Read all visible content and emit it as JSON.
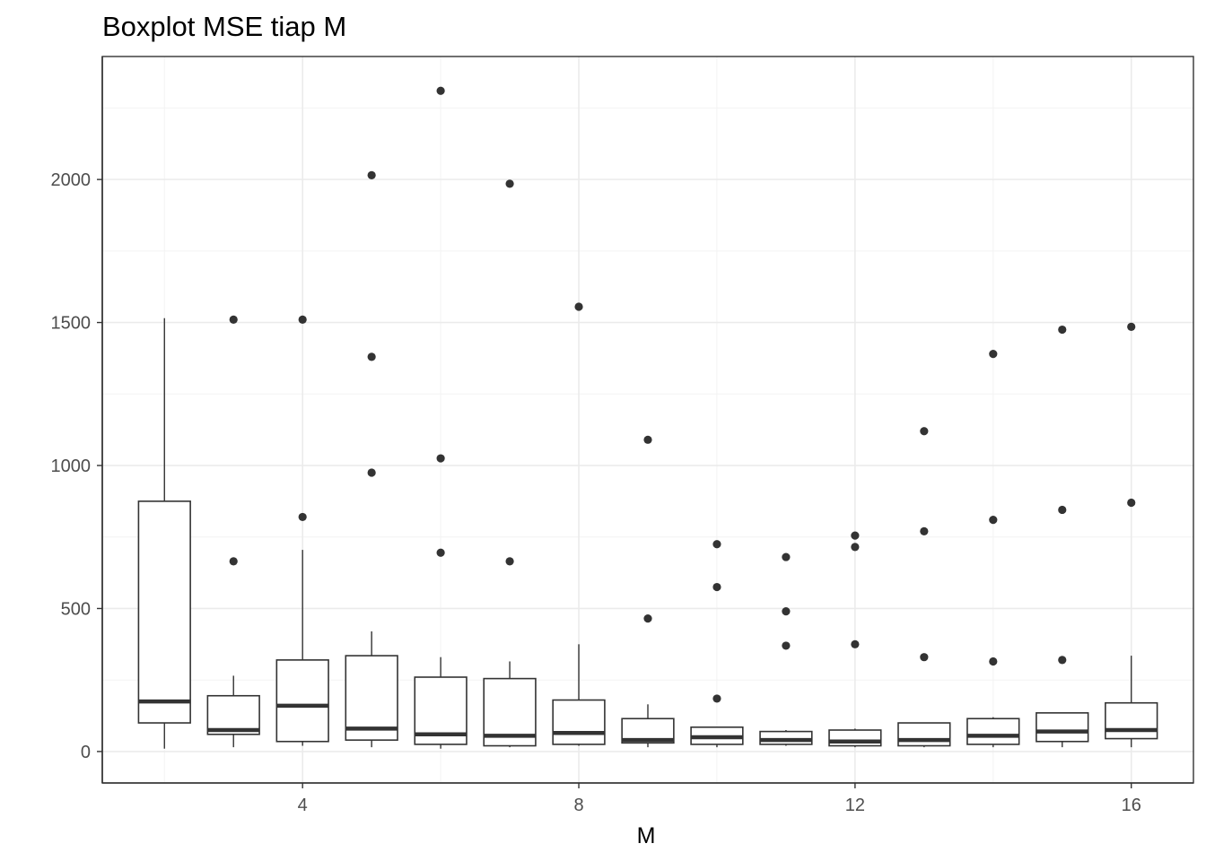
{
  "chart_data": {
    "type": "boxplot",
    "title": "Boxplot MSE tiap M",
    "xlabel": "M",
    "ylabel": "",
    "xlim": [
      1.1,
      16.9
    ],
    "ylim": [
      -110,
      2430
    ],
    "x_ticks": [
      4,
      8,
      12,
      16
    ],
    "y_ticks": [
      0,
      500,
      1000,
      1500,
      2000
    ],
    "grid": true,
    "boxes": [
      {
        "x": 2,
        "lower_whisker": 10,
        "q1": 100,
        "median": 175,
        "q3": 875,
        "upper_whisker": 1515,
        "outliers": []
      },
      {
        "x": 3,
        "lower_whisker": 15,
        "q1": 60,
        "median": 75,
        "q3": 195,
        "upper_whisker": 265,
        "outliers": [
          665,
          1510
        ]
      },
      {
        "x": 4,
        "lower_whisker": 20,
        "q1": 35,
        "median": 160,
        "q3": 320,
        "upper_whisker": 705,
        "outliers": [
          820,
          1510
        ]
      },
      {
        "x": 5,
        "lower_whisker": 15,
        "q1": 40,
        "median": 80,
        "q3": 335,
        "upper_whisker": 420,
        "outliers": [
          975,
          1380,
          2015
        ]
      },
      {
        "x": 6,
        "lower_whisker": 10,
        "q1": 25,
        "median": 60,
        "q3": 260,
        "upper_whisker": 330,
        "outliers": [
          695,
          1025,
          2310
        ]
      },
      {
        "x": 7,
        "lower_whisker": 15,
        "q1": 20,
        "median": 55,
        "q3": 255,
        "upper_whisker": 315,
        "outliers": [
          665,
          1985
        ]
      },
      {
        "x": 8,
        "lower_whisker": 20,
        "q1": 25,
        "median": 65,
        "q3": 180,
        "upper_whisker": 375,
        "outliers": [
          1555
        ]
      },
      {
        "x": 9,
        "lower_whisker": 15,
        "q1": 30,
        "median": 40,
        "q3": 115,
        "upper_whisker": 165,
        "outliers": [
          465,
          1090
        ]
      },
      {
        "x": 10,
        "lower_whisker": 15,
        "q1": 25,
        "median": 50,
        "q3": 85,
        "upper_whisker": 85,
        "outliers": [
          185,
          575,
          725
        ]
      },
      {
        "x": 11,
        "lower_whisker": 20,
        "q1": 25,
        "median": 40,
        "q3": 70,
        "upper_whisker": 75,
        "outliers": [
          370,
          490,
          680
        ]
      },
      {
        "x": 12,
        "lower_whisker": 15,
        "q1": 20,
        "median": 35,
        "q3": 75,
        "upper_whisker": 80,
        "outliers": [
          375,
          715,
          755
        ]
      },
      {
        "x": 13,
        "lower_whisker": 15,
        "q1": 20,
        "median": 40,
        "q3": 100,
        "upper_whisker": 100,
        "outliers": [
          330,
          770,
          1120
        ]
      },
      {
        "x": 14,
        "lower_whisker": 15,
        "q1": 25,
        "median": 55,
        "q3": 115,
        "upper_whisker": 120,
        "outliers": [
          315,
          810,
          1390
        ]
      },
      {
        "x": 15,
        "lower_whisker": 15,
        "q1": 35,
        "median": 70,
        "q3": 135,
        "upper_whisker": 135,
        "outliers": [
          320,
          845,
          1475
        ]
      },
      {
        "x": 16,
        "lower_whisker": 15,
        "q1": 45,
        "median": 75,
        "q3": 170,
        "upper_whisker": 335,
        "outliers": [
          870,
          1485
        ]
      }
    ]
  }
}
